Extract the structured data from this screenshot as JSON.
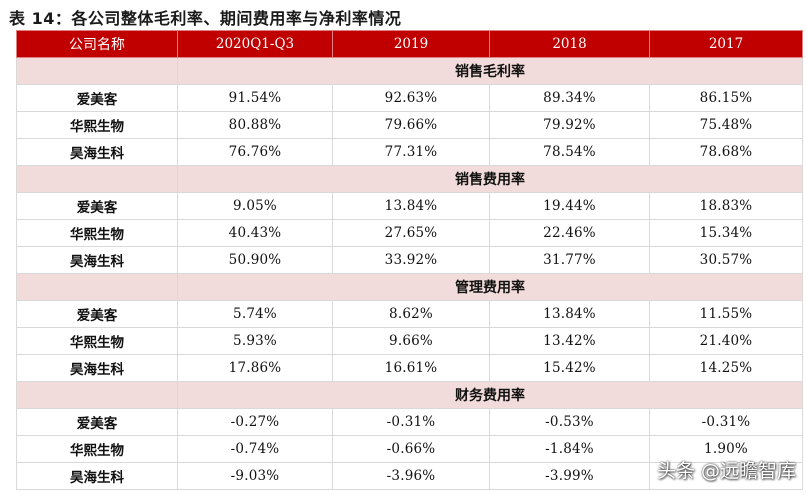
{
  "title": "表 14：各公司整体毛利率、期间费用率与净利率情况",
  "table": {
    "headers": [
      "公司名称",
      "2020Q1-Q3",
      "2019",
      "2018",
      "2017"
    ],
    "sections": [
      {
        "title": "销售毛利率",
        "rows": [
          {
            "company": "爱美客",
            "values": [
              "91.54%",
              "92.63%",
              "89.34%",
              "86.15%"
            ]
          },
          {
            "company": "华熙生物",
            "values": [
              "80.88%",
              "79.66%",
              "79.92%",
              "75.48%"
            ]
          },
          {
            "company": "昊海生科",
            "values": [
              "76.76%",
              "77.31%",
              "78.54%",
              "78.68%"
            ]
          }
        ]
      },
      {
        "title": "销售费用率",
        "rows": [
          {
            "company": "爱美客",
            "values": [
              "9.05%",
              "13.84%",
              "19.44%",
              "18.83%"
            ]
          },
          {
            "company": "华熙生物",
            "values": [
              "40.43%",
              "27.65%",
              "22.46%",
              "15.34%"
            ]
          },
          {
            "company": "昊海生科",
            "values": [
              "50.90%",
              "33.92%",
              "31.77%",
              "30.57%"
            ]
          }
        ]
      },
      {
        "title": "管理费用率",
        "rows": [
          {
            "company": "爱美客",
            "values": [
              "5.74%",
              "8.62%",
              "13.84%",
              "11.55%"
            ]
          },
          {
            "company": "华熙生物",
            "values": [
              "5.93%",
              "9.66%",
              "13.42%",
              "21.40%"
            ]
          },
          {
            "company": "昊海生科",
            "values": [
              "17.86%",
              "16.61%",
              "15.42%",
              "14.25%"
            ]
          }
        ]
      },
      {
        "title": "财务费用率",
        "rows": [
          {
            "company": "爱美客",
            "values": [
              "-0.27%",
              "-0.31%",
              "-0.53%",
              "-0.31%"
            ]
          },
          {
            "company": "华熙生物",
            "values": [
              "-0.74%",
              "-0.66%",
              "-1.84%",
              "1.90%"
            ]
          },
          {
            "company": "昊海生科",
            "values": [
              "-9.03%",
              "-3.96%",
              "-3.99%",
              ""
            ]
          }
        ]
      }
    ]
  },
  "watermark": "头条 @远瞻智库",
  "colors": {
    "header_bg": "#c00000",
    "section_bg": "#f2dcdb"
  }
}
